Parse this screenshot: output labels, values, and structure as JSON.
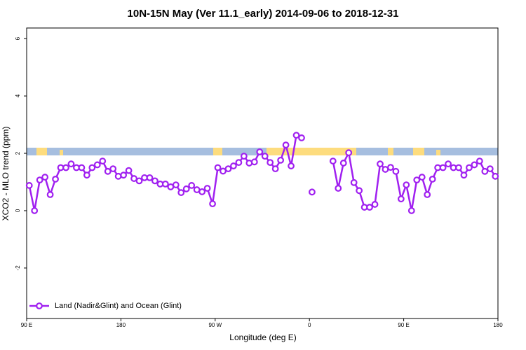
{
  "chart_data": {
    "type": "line",
    "title": "10N-15N May (Ver 11.1_early)   2014-09-06 to 2018-12-31",
    "x_label": "Longitude (deg E)",
    "y_label": "XCO2 - MLO trend (ppm)",
    "xlim": [
      90,
      540
    ],
    "ylim": [
      -3.76,
      6.37
    ],
    "xticks": [
      {
        "value": 90,
        "label": "90 E"
      },
      180,
      {
        "value": 270,
        "label": "90 W"
      },
      {
        "value": 360,
        "label": "0"
      },
      {
        "value": 450,
        "label": "90 E"
      },
      {
        "value": 540,
        "label": "180"
      }
    ],
    "yticks": [
      -2,
      0,
      2,
      4,
      6
    ],
    "legend": "bottomleft",
    "x": [
      92.5,
      97.5,
      102.5,
      107.5,
      112.5,
      117.5,
      122.5,
      127.5,
      132.5,
      137.5,
      142.5,
      147.5,
      152.5,
      157.5,
      162.5,
      167.5,
      172.5,
      177.5,
      182.5,
      187.5,
      192.5,
      197.5,
      202.5,
      207.5,
      212.5,
      217.5,
      222.5,
      227.5,
      232.5,
      237.5,
      242.5,
      247.5,
      252.5,
      257.5,
      262.5,
      267.5,
      272.5,
      277.5,
      282.5,
      287.5,
      292.5,
      297.5,
      302.5,
      307.5,
      312.5,
      317.5,
      322.5,
      327.5,
      332.5,
      337.5,
      342.5,
      347.5,
      352.5,
      357.5,
      362.5,
      367.5,
      372.5,
      377.5,
      382.5,
      387.5,
      392.5,
      397.5,
      402.5,
      407.5,
      412.5,
      417.5,
      422.5,
      427.5,
      432.5,
      437.5,
      442.5,
      447.5,
      452.5,
      457.5,
      462.5,
      467.5,
      472.5,
      477.5,
      482.5,
      487.5,
      492.5,
      497.5,
      502.5,
      507.5,
      512.5,
      517.5,
      522.5,
      527.5,
      532.5,
      537.5
    ],
    "series": [
      {
        "name": "Land (Nadir&Glint) and Ocean (Glint)",
        "color": "#a020f0",
        "values": [
          0.88,
          0.0,
          1.07,
          1.17,
          0.56,
          1.1,
          1.5,
          1.5,
          1.63,
          1.5,
          1.5,
          1.24,
          1.5,
          1.6,
          1.73,
          1.37,
          1.46,
          1.2,
          1.24,
          1.4,
          1.12,
          1.04,
          1.15,
          1.15,
          1.04,
          0.93,
          0.93,
          0.83,
          0.9,
          0.63,
          0.76,
          0.88,
          0.73,
          0.66,
          0.78,
          0.24,
          1.5,
          1.38,
          1.46,
          1.56,
          1.68,
          1.9,
          1.66,
          1.7,
          2.05,
          1.9,
          1.68,
          1.46,
          1.76,
          2.29,
          1.56,
          2.63,
          2.54,
          null,
          0.65,
          null,
          null,
          null,
          1.73,
          0.78,
          1.66,
          2.02,
          0.98,
          0.7,
          0.12,
          0.12,
          0.22,
          1.63,
          1.44,
          1.51,
          1.37,
          0.41,
          0.9,
          0.0,
          1.07,
          1.17,
          0.56,
          1.1,
          1.5,
          1.5,
          1.63,
          1.5,
          1.5,
          1.24,
          1.5,
          1.6,
          1.73,
          1.37,
          1.46,
          1.2
        ]
      }
    ]
  }
}
